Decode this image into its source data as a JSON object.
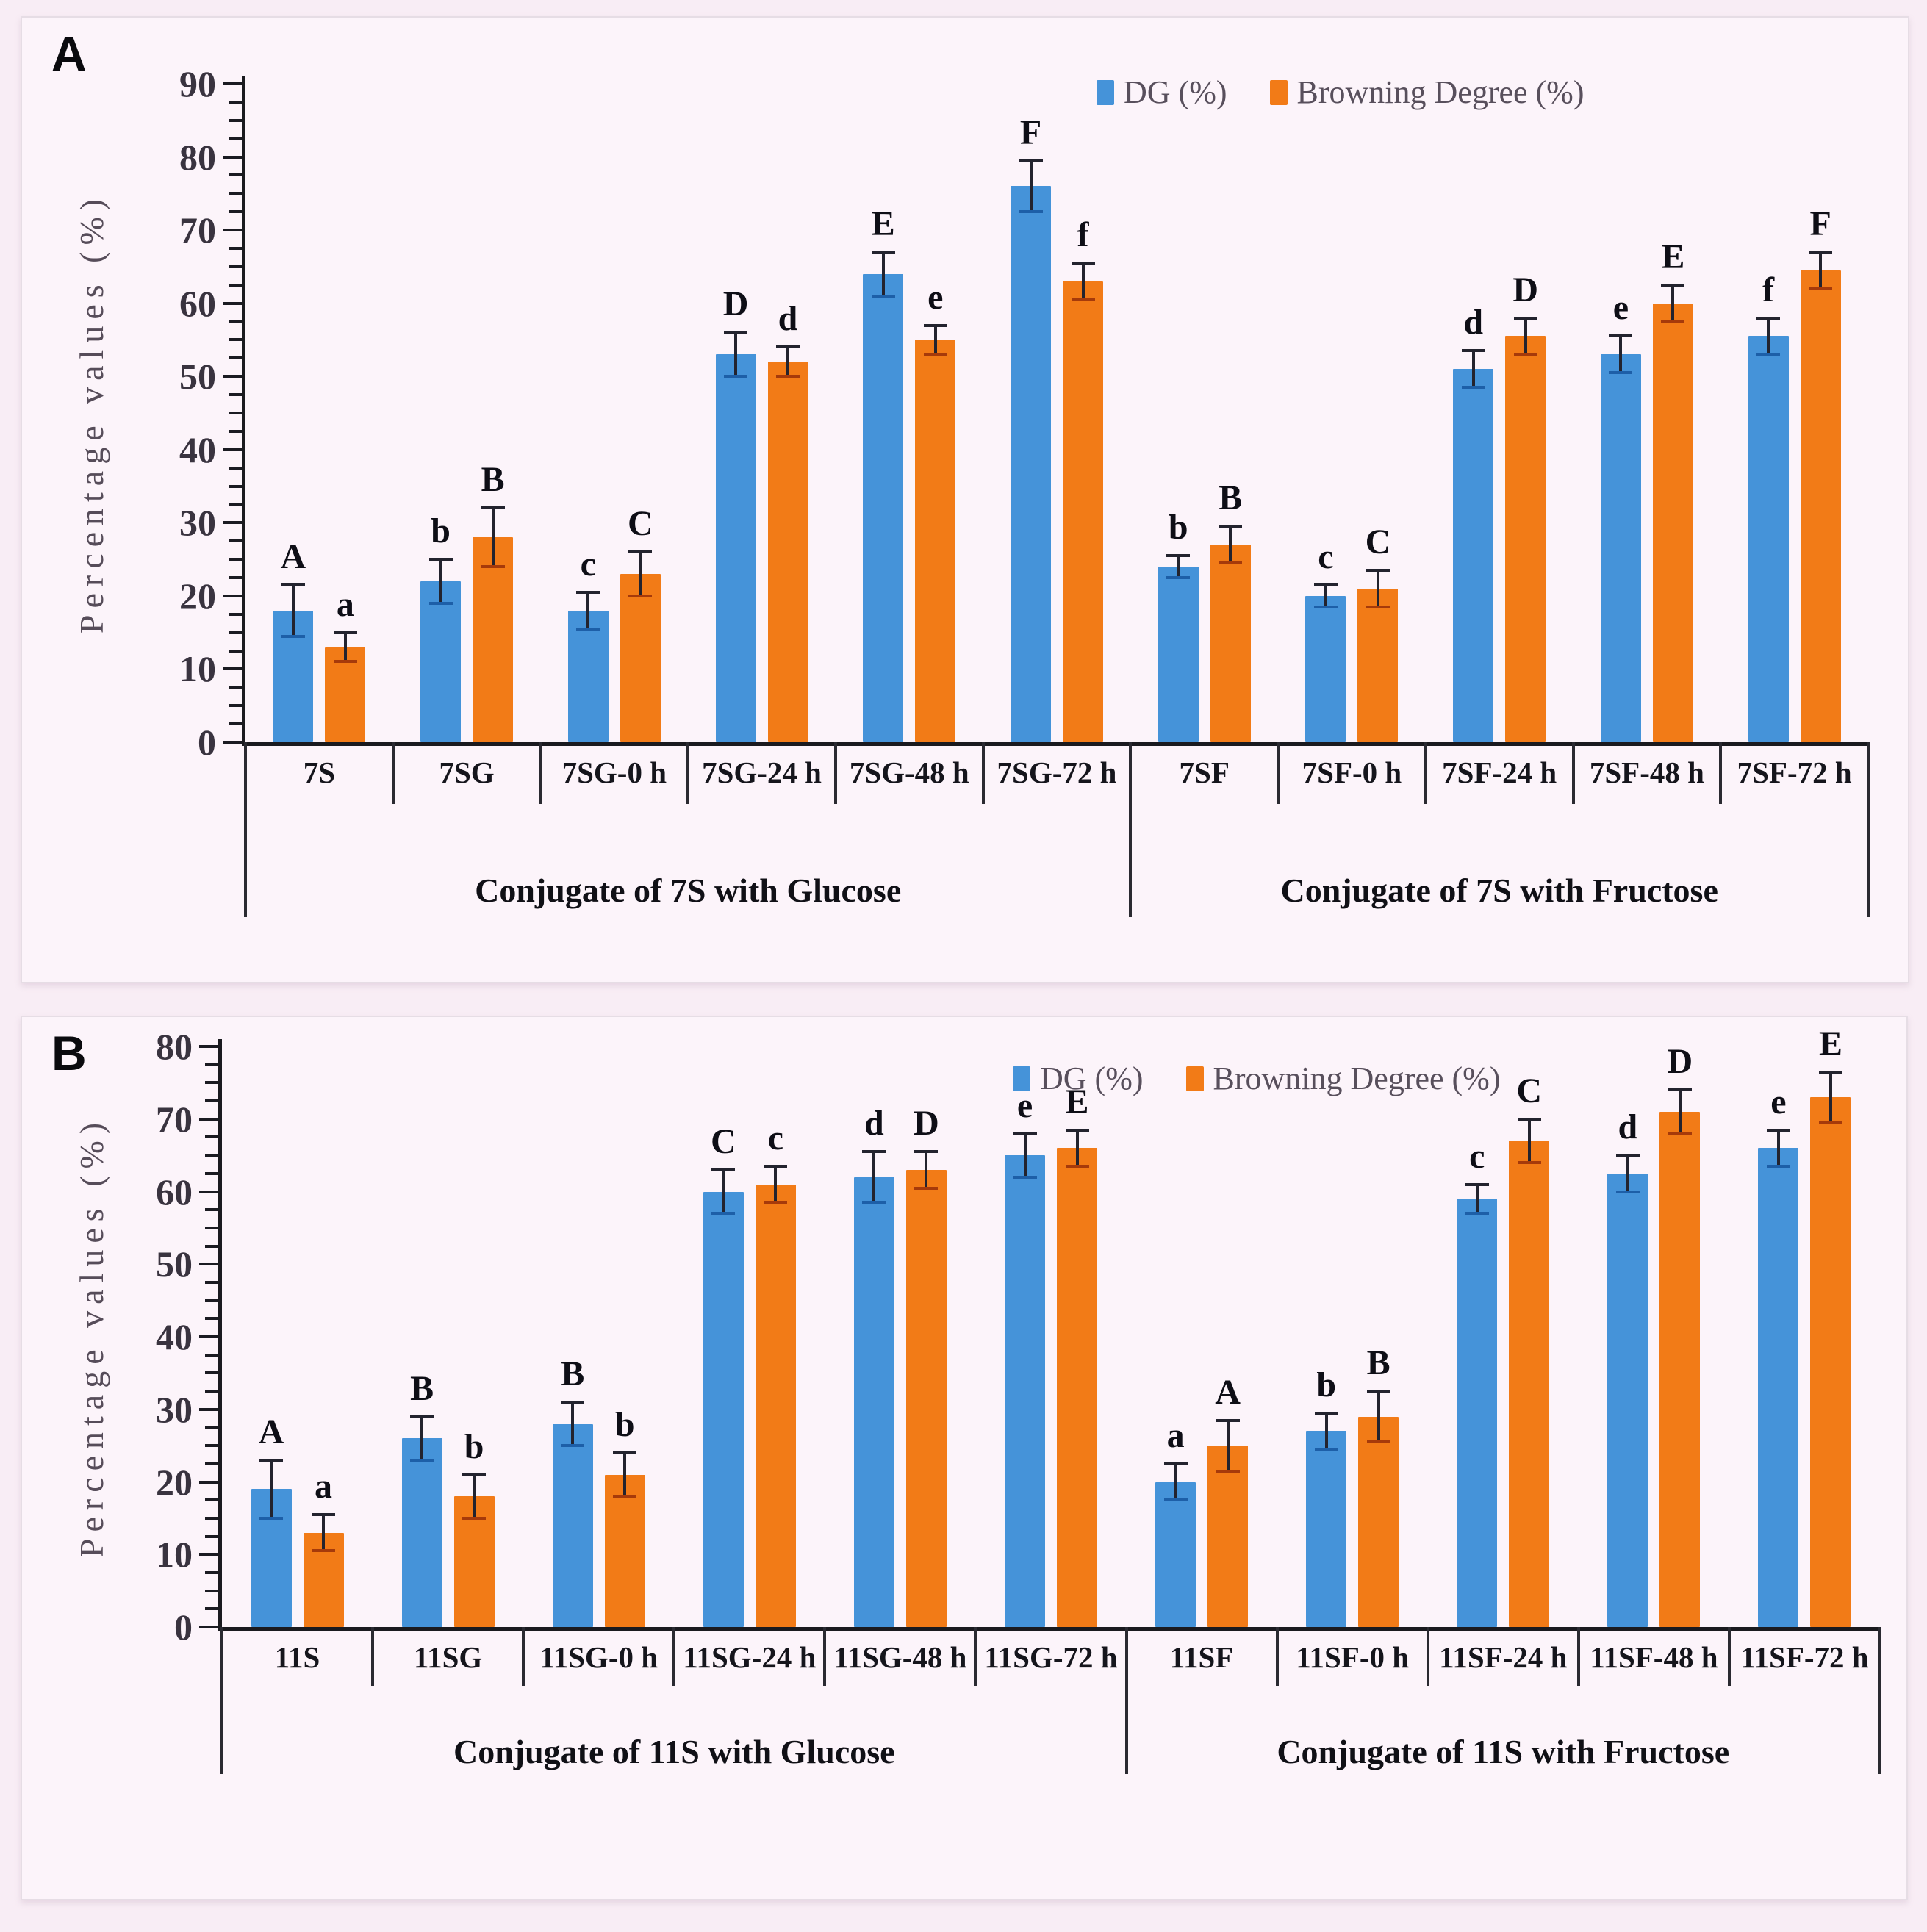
{
  "figure": {
    "background": "#f8edf5"
  },
  "colors": {
    "dg": "#4593d9",
    "browning": "#f27b17",
    "error_line": "#23232e",
    "dg_cap": "#1d5fa8",
    "browning_cap": "#a63a0a",
    "axis": "#1a1a1f"
  },
  "chart_data": [
    {
      "panel_label": "A",
      "type": "bar",
      "ylabel": "Percentage values (%)",
      "ylim": [
        0,
        90
      ],
      "yticks": [
        0,
        10,
        20,
        30,
        40,
        50,
        60,
        70,
        80,
        90
      ],
      "legend": [
        "DG (%)",
        "Browning Degree (%)"
      ],
      "series": [
        "DG (%)",
        "Browning Degree (%)"
      ],
      "groups": [
        {
          "label": "Conjugate of 7S with Glucose",
          "categories": [
            {
              "label": "7S",
              "dg": 18,
              "dg_err": 3.5,
              "dg_letter": "A",
              "bd": 13,
              "bd_err": 2,
              "bd_letter": "a"
            },
            {
              "label": "7SG",
              "dg": 22,
              "dg_err": 3,
              "dg_letter": "b",
              "bd": 28,
              "bd_err": 4,
              "bd_letter": "B"
            },
            {
              "label": "7SG-0 h",
              "dg": 18,
              "dg_err": 2.5,
              "dg_letter": "c",
              "bd": 23,
              "bd_err": 3,
              "bd_letter": "C"
            },
            {
              "label": "7SG-24 h",
              "dg": 53,
              "dg_err": 3,
              "dg_letter": "D",
              "bd": 52,
              "bd_err": 2,
              "bd_letter": "d"
            },
            {
              "label": "7SG-48 h",
              "dg": 64,
              "dg_err": 3,
              "dg_letter": "E",
              "bd": 55,
              "bd_err": 2,
              "bd_letter": "e"
            },
            {
              "label": "7SG-72 h",
              "dg": 76,
              "dg_err": 3.5,
              "dg_letter": "F",
              "bd": 63,
              "bd_err": 2.5,
              "bd_letter": "f"
            }
          ]
        },
        {
          "label": "Conjugate of 7S with Fructose",
          "categories": [
            {
              "label": "7SF",
              "dg": 24,
              "dg_err": 1.5,
              "dg_letter": "b",
              "bd": 27,
              "bd_err": 2.5,
              "bd_letter": "B"
            },
            {
              "label": "7SF-0 h",
              "dg": 20,
              "dg_err": 1.5,
              "dg_letter": "c",
              "bd": 21,
              "bd_err": 2.5,
              "bd_letter": "C"
            },
            {
              "label": "7SF-24 h",
              "dg": 51,
              "dg_err": 2.5,
              "dg_letter": "d",
              "bd": 55.5,
              "bd_err": 2.5,
              "bd_letter": "D"
            },
            {
              "label": "7SF-48 h",
              "dg": 53,
              "dg_err": 2.5,
              "dg_letter": "e",
              "bd": 60,
              "bd_err": 2.5,
              "bd_letter": "E"
            },
            {
              "label": "7SF-72 h",
              "dg": 55.5,
              "dg_err": 2.5,
              "dg_letter": "f",
              "bd": 64.5,
              "bd_err": 2.5,
              "bd_letter": "F"
            }
          ]
        }
      ]
    },
    {
      "panel_label": "B",
      "type": "bar",
      "ylabel": "Percentage values (%)",
      "ylim": [
        0,
        80
      ],
      "yticks": [
        0,
        10,
        20,
        30,
        40,
        50,
        60,
        70,
        80
      ],
      "legend": [
        "DG (%)",
        "Browning Degree (%)"
      ],
      "series": [
        "DG (%)",
        "Browning Degree (%)"
      ],
      "groups": [
        {
          "label": "Conjugate of 11S with Glucose",
          "categories": [
            {
              "label": "11S",
              "dg": 19,
              "dg_err": 4,
              "dg_letter": "A",
              "bd": 13,
              "bd_err": 2.5,
              "bd_letter": "a"
            },
            {
              "label": "11SG",
              "dg": 26,
              "dg_err": 3,
              "dg_letter": "B",
              "bd": 18,
              "bd_err": 3,
              "bd_letter": "b"
            },
            {
              "label": "11SG-0 h",
              "dg": 28,
              "dg_err": 3,
              "dg_letter": "B",
              "bd": 21,
              "bd_err": 3,
              "bd_letter": "b"
            },
            {
              "label": "11SG-24 h",
              "dg": 60,
              "dg_err": 3,
              "dg_letter": "C",
              "bd": 61,
              "bd_err": 2.5,
              "bd_letter": "c"
            },
            {
              "label": "11SG-48 h",
              "dg": 62,
              "dg_err": 3.5,
              "dg_letter": "d",
              "bd": 63,
              "bd_err": 2.5,
              "bd_letter": "D"
            },
            {
              "label": "11SG-72 h",
              "dg": 65,
              "dg_err": 3,
              "dg_letter": "e",
              "bd": 66,
              "bd_err": 2.5,
              "bd_letter": "E"
            }
          ]
        },
        {
          "label": "Conjugate of 11S with Fructose",
          "categories": [
            {
              "label": "11SF",
              "dg": 20,
              "dg_err": 2.5,
              "dg_letter": "a",
              "bd": 25,
              "bd_err": 3.5,
              "bd_letter": "A"
            },
            {
              "label": "11SF-0 h",
              "dg": 27,
              "dg_err": 2.5,
              "dg_letter": "b",
              "bd": 29,
              "bd_err": 3.5,
              "bd_letter": "B"
            },
            {
              "label": "11SF-24 h",
              "dg": 59,
              "dg_err": 2,
              "dg_letter": "c",
              "bd": 67,
              "bd_err": 3,
              "bd_letter": "C"
            },
            {
              "label": "11SF-48 h",
              "dg": 62.5,
              "dg_err": 2.5,
              "dg_letter": "d",
              "bd": 71,
              "bd_err": 3,
              "bd_letter": "D"
            },
            {
              "label": "11SF-72 h",
              "dg": 66,
              "dg_err": 2.5,
              "dg_letter": "e",
              "bd": 73,
              "bd_err": 3.5,
              "bd_letter": "E"
            }
          ]
        }
      ]
    }
  ]
}
